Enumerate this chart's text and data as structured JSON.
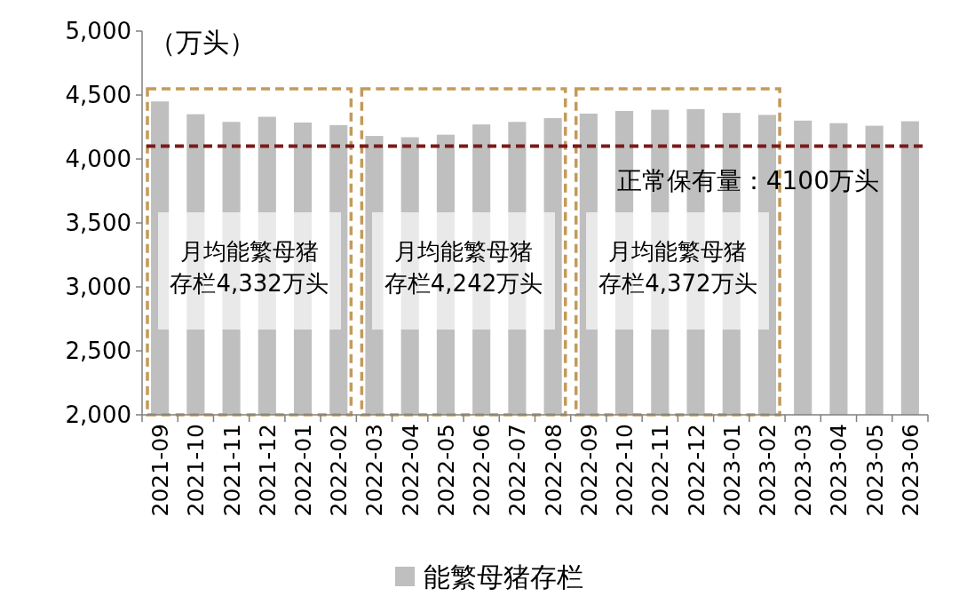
{
  "chart_data": {
    "type": "bar",
    "ylabel": "（万头）",
    "categories": [
      "2021-09",
      "2021-10",
      "2021-11",
      "2021-12",
      "2022-01",
      "2022-02",
      "2022-03",
      "2022-04",
      "2022-05",
      "2022-06",
      "2022-07",
      "2022-08",
      "2022-09",
      "2022-10",
      "2022-11",
      "2022-12",
      "2023-01",
      "2023-02",
      "2023-03",
      "2023-04",
      "2023-05",
      "2023-06"
    ],
    "series": [
      {
        "name": "能繁母猪存栏",
        "color": "#bfbfbf",
        "values": [
          4450,
          4350,
          4290,
          4330,
          4285,
          4265,
          4180,
          4170,
          4190,
          4270,
          4290,
          4320,
          4355,
          4375,
          4385,
          4390,
          4360,
          4345,
          4300,
          4280,
          4260,
          4295
        ]
      }
    ],
    "ylim": [
      2000,
      5000
    ],
    "yticks": [
      {
        "value": 2000,
        "label": "2,000"
      },
      {
        "value": 2500,
        "label": "2,500"
      },
      {
        "value": 3000,
        "label": "3,000"
      },
      {
        "value": 3500,
        "label": "3,500"
      },
      {
        "value": 4000,
        "label": "4,000"
      },
      {
        "value": 4500,
        "label": "4,500"
      },
      {
        "value": 5000,
        "label": "5,000"
      }
    ],
    "ref_lines": [
      {
        "axis": "y",
        "value": 4100,
        "label": "正常保有量：4100万头",
        "color": "#7b1a1a",
        "line_style": "dashed"
      }
    ],
    "bands": [
      {
        "axis": "x",
        "from": "2021-09",
        "to": "2022-02",
        "label": "月均能繁母猪存栏4,332万头"
      },
      {
        "axis": "x",
        "from": "2022-03",
        "to": "2022-08",
        "label": "月均能繁母猪存栏4,242万头"
      },
      {
        "axis": "x",
        "from": "2022-09",
        "to": "2023-02",
        "label": "月均能繁母猪存栏4,372万头"
      }
    ],
    "legend": "bottom"
  }
}
